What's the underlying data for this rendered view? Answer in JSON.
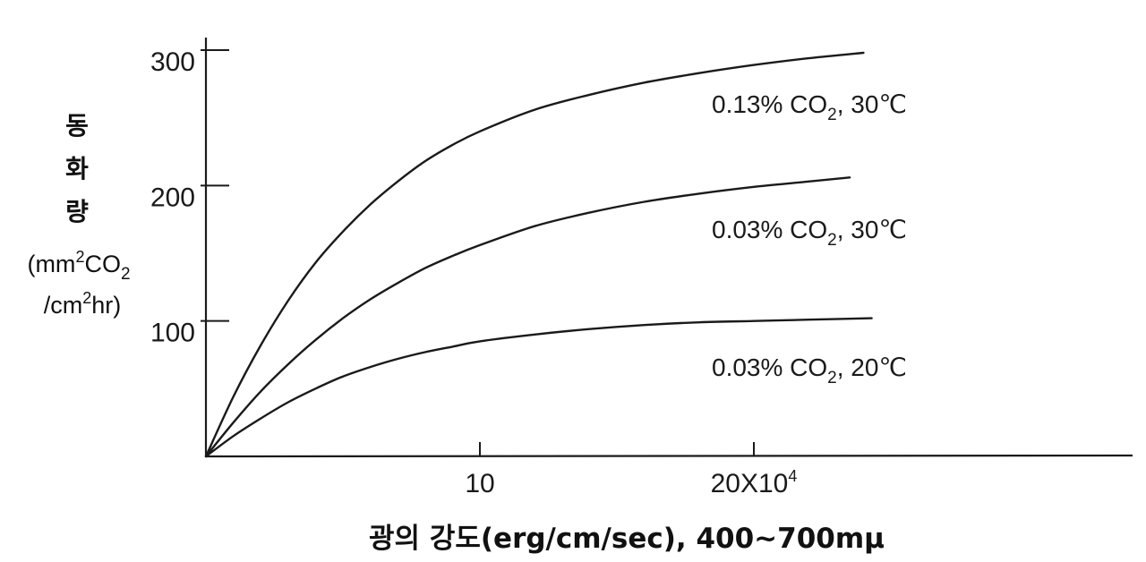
{
  "chart_data": {
    "type": "line",
    "x_tick_labels": [
      {
        "value": 10,
        "text": "10"
      },
      {
        "value": 20,
        "text": "20X10",
        "sup": "4"
      }
    ],
    "y_ticks": [
      100,
      200,
      300
    ],
    "xlim": [
      0,
      35
    ],
    "ylim": [
      0,
      300
    ],
    "xlabel": "광의 강도(erg/cm/sec), 400~700mμ",
    "ylabel": {
      "main": [
        "동",
        "화",
        "량"
      ],
      "unit_line1": {
        "pre": "(mm",
        "sup": "2",
        "mid": "CO",
        "sub": "2",
        "post": ""
      },
      "unit_line2": {
        "pre": "/cm",
        "sup": "2",
        "post": "hr)"
      }
    },
    "series": [
      {
        "name": "0.13% CO₂, 30℃",
        "label": {
          "pre": "0.13% CO",
          "sub": "2",
          "post": ", 30℃"
        },
        "x": [
          0,
          1,
          2,
          3,
          4,
          5,
          6,
          7,
          8,
          9,
          10,
          12,
          14,
          16,
          18,
          20,
          22,
          24
        ],
        "y": [
          0,
          44,
          82,
          115,
          143,
          166,
          186,
          203,
          218,
          230,
          240,
          256,
          267,
          276,
          283,
          289,
          294,
          298
        ]
      },
      {
        "name": "0.03% CO₂, 30℃",
        "label": {
          "pre": "0.03% CO",
          "sub": "2",
          "post": ", 30℃"
        },
        "x": [
          0,
          1,
          2,
          3,
          4,
          5,
          6,
          7,
          8,
          9,
          10,
          12,
          14,
          16,
          18,
          20,
          22,
          23.5
        ],
        "y": [
          0,
          25,
          48,
          68,
          86,
          102,
          116,
          128,
          139,
          148,
          156,
          170,
          180,
          188,
          194,
          199,
          203,
          206
        ]
      },
      {
        "name": "0.03% CO₂, 20℃",
        "label": {
          "pre": "0.03% CO",
          "sub": "2",
          "post": ", 20℃"
        },
        "x": [
          0,
          1,
          2,
          3,
          4,
          5,
          6,
          7,
          8,
          9,
          10,
          12,
          14,
          16,
          18,
          20,
          22,
          24.3
        ],
        "y": [
          0,
          15,
          28,
          40,
          50,
          59,
          66,
          72,
          77,
          81,
          85,
          90,
          94,
          97,
          99,
          100,
          101,
          102
        ]
      }
    ]
  }
}
